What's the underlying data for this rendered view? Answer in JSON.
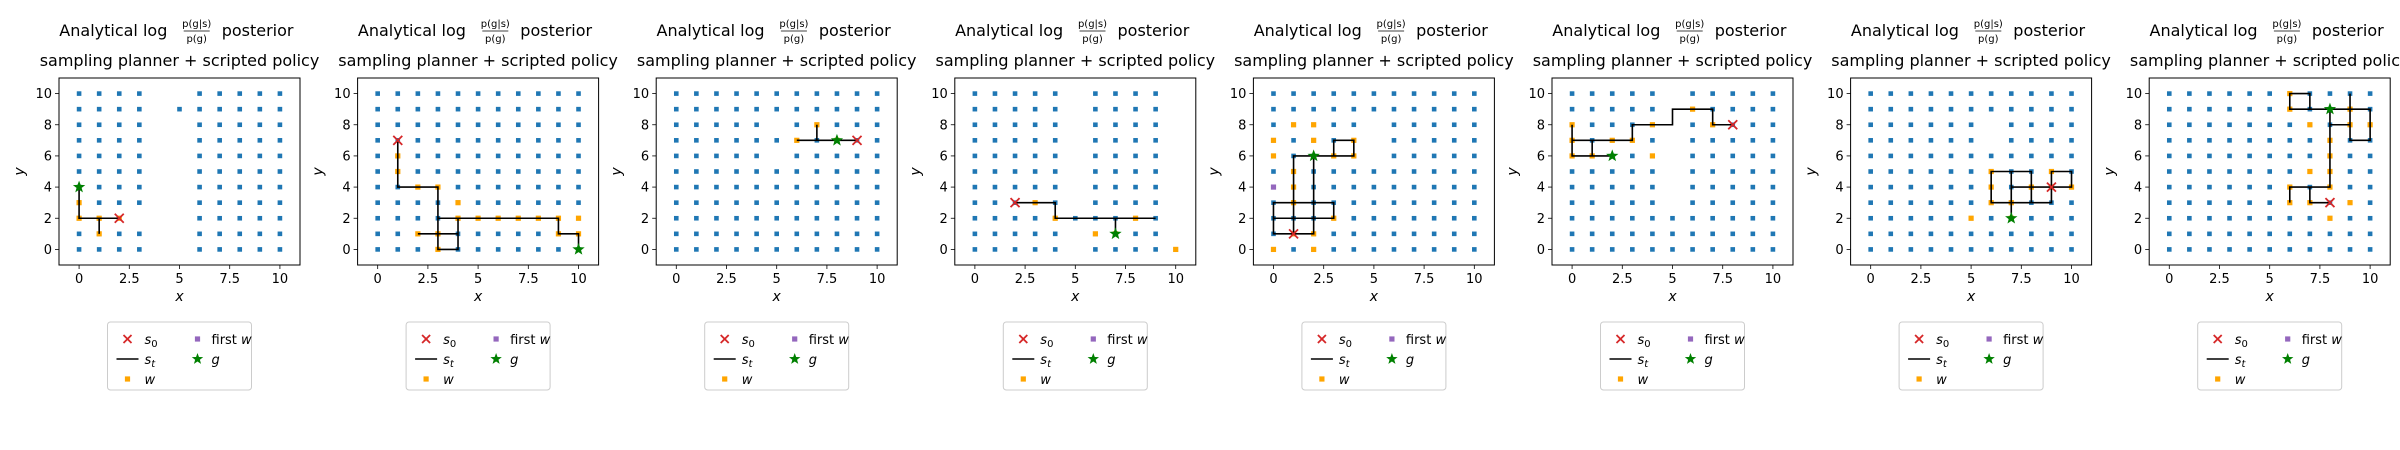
{
  "panel_titles": {
    "line1_prefix": "Analytical",
    "line1_log": "log",
    "frac_num": "p(g|s)",
    "frac_den": "p(g)",
    "line1_suffix": "posterior",
    "line2": "sampling planner + scripted policy"
  },
  "legend": {
    "s0": "s0",
    "st": "st",
    "w": "w",
    "first_w": "first w",
    "g": "g"
  },
  "colors": {
    "grid_states": "#1f77b4",
    "waypoints": "#ffa500",
    "trajectory": "#000000",
    "start_marker": "#d62728",
    "goal_marker": "#008000",
    "first_waypoint": "#9467bd"
  },
  "chart_data": [
    {
      "type": "scatter",
      "xlabel": "x",
      "ylabel": "y",
      "xlim": [
        -1,
        11
      ],
      "ylim": [
        -1,
        11
      ],
      "xticks": [
        0.0,
        2.5,
        5.0,
        7.5,
        10.0
      ],
      "yticks": [
        0,
        2,
        4,
        6,
        8,
        10
      ],
      "missing_states": [
        [
          4,
          0
        ],
        [
          4,
          1
        ],
        [
          4,
          3
        ],
        [
          4,
          4
        ],
        [
          4,
          5
        ],
        [
          4,
          6
        ],
        [
          4,
          7
        ],
        [
          4,
          8
        ],
        [
          4,
          9
        ],
        [
          4,
          10
        ],
        [
          5,
          0
        ],
        [
          5,
          1
        ],
        [
          5,
          3
        ],
        [
          5,
          4
        ],
        [
          5,
          5
        ],
        [
          5,
          6
        ],
        [
          5,
          7
        ],
        [
          5,
          8
        ],
        [
          5,
          10
        ],
        [
          3,
          2
        ],
        [
          4,
          2
        ],
        [
          5,
          2
        ]
      ],
      "waypoints": [
        [
          0,
          3
        ],
        [
          0,
          2
        ],
        [
          1,
          1
        ],
        [
          1,
          2
        ],
        [
          2,
          2
        ]
      ],
      "trajectory": [
        [
          0,
          4
        ],
        [
          0,
          2
        ],
        [
          1,
          2
        ],
        [
          1,
          1
        ],
        [
          1,
          2
        ],
        [
          2,
          2
        ]
      ],
      "start": [
        2,
        2
      ],
      "goal": [
        0,
        4
      ],
      "first_waypoint": null
    },
    {
      "type": "scatter",
      "xlabel": "x",
      "ylabel": "y",
      "xlim": [
        -1,
        11
      ],
      "ylim": [
        -1,
        11
      ],
      "xticks": [
        0.0,
        2.5,
        5.0,
        7.5,
        10.0
      ],
      "yticks": [
        0,
        2,
        4,
        6,
        8,
        10
      ],
      "missing_states": [],
      "waypoints": [
        [
          1,
          6
        ],
        [
          1,
          5
        ],
        [
          2,
          4
        ],
        [
          3,
          4
        ],
        [
          4,
          3
        ],
        [
          4,
          2
        ],
        [
          3,
          1
        ],
        [
          3,
          0
        ],
        [
          2,
          1
        ],
        [
          5,
          2
        ],
        [
          6,
          2
        ],
        [
          7,
          2
        ],
        [
          8,
          2
        ],
        [
          9,
          2
        ],
        [
          10,
          2
        ],
        [
          10,
          1
        ],
        [
          9,
          1
        ]
      ],
      "trajectory": [
        [
          1,
          7
        ],
        [
          1,
          4
        ],
        [
          3,
          4
        ],
        [
          3,
          2
        ],
        [
          4,
          2
        ],
        [
          4,
          1
        ],
        [
          2,
          1
        ],
        [
          4,
          1
        ],
        [
          4,
          0
        ],
        [
          3,
          0
        ],
        [
          3,
          2
        ],
        [
          9,
          2
        ],
        [
          9,
          1
        ],
        [
          10,
          1
        ],
        [
          10,
          0
        ]
      ],
      "start": [
        1,
        7
      ],
      "goal": [
        10,
        0
      ],
      "first_waypoint": null
    },
    {
      "type": "scatter",
      "xlabel": "x",
      "ylabel": "y",
      "xlim": [
        -1,
        11
      ],
      "ylim": [
        -1,
        11
      ],
      "xticks": [
        0.0,
        2.5,
        5.0,
        7.5,
        10.0
      ],
      "yticks": [
        0,
        2,
        4,
        6,
        8,
        10
      ],
      "missing_states": [
        [
          5,
          6
        ],
        [
          5,
          8
        ]
      ],
      "waypoints": [
        [
          6,
          7
        ],
        [
          7,
          8
        ],
        [
          8,
          7
        ]
      ],
      "trajectory": [
        [
          9,
          7
        ],
        [
          7,
          7
        ],
        [
          7,
          8
        ],
        [
          7,
          7
        ],
        [
          6,
          7
        ]
      ],
      "start": [
        9,
        7
      ],
      "goal": [
        8,
        7
      ],
      "first_waypoint": null
    },
    {
      "type": "scatter",
      "xlabel": "x",
      "ylabel": "y",
      "xlim": [
        -1,
        11
      ],
      "ylim": [
        -1,
        11
      ],
      "xticks": [
        0.0,
        2.5,
        5.0,
        7.5,
        10.0
      ],
      "yticks": [
        0,
        2,
        4,
        6,
        8,
        10
      ],
      "missing_states": [
        [
          5,
          0
        ],
        [
          5,
          1
        ],
        [
          5,
          3
        ],
        [
          5,
          4
        ],
        [
          5,
          5
        ],
        [
          5,
          6
        ],
        [
          5,
          7
        ],
        [
          5,
          8
        ],
        [
          5,
          9
        ],
        [
          5,
          10
        ],
        [
          10,
          1
        ],
        [
          10,
          2
        ],
        [
          10,
          3
        ],
        [
          10,
          4
        ],
        [
          10,
          5
        ],
        [
          10,
          6
        ],
        [
          10,
          7
        ],
        [
          10,
          8
        ],
        [
          10,
          9
        ],
        [
          10,
          10
        ]
      ],
      "waypoints": [
        [
          3,
          3
        ],
        [
          4,
          2
        ],
        [
          6,
          1
        ],
        [
          7,
          1
        ],
        [
          8,
          2
        ],
        [
          10,
          0
        ]
      ],
      "trajectory": [
        [
          2,
          3
        ],
        [
          4,
          3
        ],
        [
          4,
          2
        ],
        [
          9,
          2
        ],
        [
          7,
          2
        ],
        [
          7,
          1
        ]
      ],
      "start": [
        2,
        3
      ],
      "goal": [
        7,
        1
      ],
      "first_waypoint": null
    },
    {
      "type": "scatter",
      "xlabel": "x",
      "ylabel": "y",
      "xlim": [
        -1,
        11
      ],
      "ylim": [
        -1,
        11
      ],
      "xticks": [
        0.0,
        2.5,
        5.0,
        7.5,
        10.0
      ],
      "yticks": [
        0,
        2,
        4,
        6,
        8,
        10
      ],
      "missing_states": [
        [
          5,
          6
        ],
        [
          5,
          7
        ],
        [
          5,
          8
        ]
      ],
      "waypoints": [
        [
          0,
          7
        ],
        [
          1,
          8
        ],
        [
          2,
          8
        ],
        [
          0,
          6
        ],
        [
          1,
          5
        ],
        [
          1,
          4
        ],
        [
          1,
          3
        ],
        [
          2,
          7
        ],
        [
          3,
          6
        ],
        [
          4,
          6
        ],
        [
          4,
          7
        ],
        [
          3,
          2
        ],
        [
          2,
          1
        ],
        [
          2,
          0
        ],
        [
          1,
          1
        ],
        [
          0,
          0
        ]
      ],
      "trajectory": [
        [
          1,
          1
        ],
        [
          0,
          1
        ],
        [
          0,
          3
        ],
        [
          1,
          3
        ],
        [
          1,
          6
        ],
        [
          3,
          6
        ],
        [
          3,
          7
        ],
        [
          4,
          7
        ],
        [
          4,
          6
        ],
        [
          2,
          6
        ],
        [
          2,
          3
        ],
        [
          3,
          3
        ],
        [
          3,
          2
        ],
        [
          0,
          2
        ],
        [
          0,
          1
        ],
        [
          2,
          1
        ],
        [
          2,
          3
        ],
        [
          1,
          3
        ],
        [
          1,
          1
        ]
      ],
      "start": [
        1,
        1
      ],
      "goal": [
        2,
        6
      ],
      "first_waypoint": [
        0,
        4
      ]
    },
    {
      "type": "scatter",
      "xlabel": "x",
      "ylabel": "y",
      "xlim": [
        -1,
        11
      ],
      "ylim": [
        -1,
        11
      ],
      "xticks": [
        0.0,
        2.5,
        5.0,
        7.5,
        10.0
      ],
      "yticks": [
        0,
        2,
        4,
        6,
        8,
        10
      ],
      "missing_states": [
        [
          5,
          3
        ],
        [
          5,
          4
        ],
        [
          5,
          5
        ],
        [
          5,
          6
        ],
        [
          5,
          7
        ],
        [
          5,
          8
        ],
        [
          5,
          9
        ],
        [
          5,
          10
        ]
      ],
      "waypoints": [
        [
          0,
          8
        ],
        [
          0,
          7
        ],
        [
          0,
          6
        ],
        [
          1,
          6
        ],
        [
          2,
          7
        ],
        [
          3,
          7
        ],
        [
          4,
          6
        ],
        [
          4,
          8
        ],
        [
          6,
          9
        ],
        [
          7,
          8
        ]
      ],
      "trajectory": [
        [
          8,
          8
        ],
        [
          7,
          8
        ],
        [
          7,
          9
        ],
        [
          5,
          9
        ],
        [
          5,
          8
        ],
        [
          3,
          8
        ],
        [
          3,
          7
        ],
        [
          1,
          7
        ],
        [
          1,
          6
        ],
        [
          0,
          6
        ],
        [
          0,
          8
        ],
        [
          0,
          7
        ],
        [
          1,
          7
        ],
        [
          1,
          6
        ],
        [
          2,
          6
        ]
      ],
      "start": [
        8,
        8
      ],
      "goal": [
        2,
        6
      ],
      "first_waypoint": null
    },
    {
      "type": "scatter",
      "xlabel": "x",
      "ylabel": "y",
      "xlim": [
        -1,
        11
      ],
      "ylim": [
        -1,
        11
      ],
      "xticks": [
        0.0,
        2.5,
        5.0,
        7.5,
        10.0
      ],
      "yticks": [
        0,
        2,
        4,
        6,
        8,
        10
      ],
      "missing_states": [
        [
          6,
          7
        ],
        [
          6,
          8
        ]
      ],
      "waypoints": [
        [
          6,
          5
        ],
        [
          6,
          4
        ],
        [
          6,
          3
        ],
        [
          7,
          3
        ],
        [
          8,
          4
        ],
        [
          9,
          5
        ],
        [
          9,
          4
        ],
        [
          10,
          4
        ],
        [
          5,
          2
        ],
        [
          7,
          2
        ]
      ],
      "trajectory": [
        [
          9,
          4
        ],
        [
          8,
          4
        ],
        [
          8,
          3
        ],
        [
          7,
          3
        ],
        [
          7,
          5
        ],
        [
          6,
          5
        ],
        [
          6,
          3
        ],
        [
          7,
          3
        ],
        [
          7,
          2
        ],
        [
          7,
          4
        ],
        [
          8,
          4
        ],
        [
          8,
          5
        ],
        [
          7,
          5
        ],
        [
          8,
          5
        ],
        [
          8,
          3
        ],
        [
          9,
          3
        ],
        [
          9,
          5
        ],
        [
          10,
          5
        ],
        [
          10,
          4
        ],
        [
          9,
          4
        ]
      ],
      "start": [
        9,
        4
      ],
      "goal": [
        7,
        2
      ],
      "first_waypoint": null
    },
    {
      "type": "scatter",
      "xlabel": "x",
      "ylabel": "y",
      "xlim": [
        -1,
        11
      ],
      "ylim": [
        -1,
        11
      ],
      "xticks": [
        0.0,
        2.5,
        5.0,
        7.5,
        10.0
      ],
      "yticks": [
        0,
        2,
        4,
        6,
        8,
        10
      ],
      "missing_states": [],
      "waypoints": [
        [
          6,
          10
        ],
        [
          6,
          9
        ],
        [
          7,
          8
        ],
        [
          9,
          8
        ],
        [
          10,
          8
        ],
        [
          9,
          9
        ],
        [
          8,
          7
        ],
        [
          8,
          6
        ],
        [
          8,
          5
        ],
        [
          8,
          4
        ],
        [
          7,
          5
        ],
        [
          6,
          4
        ],
        [
          6,
          3
        ],
        [
          7,
          3
        ],
        [
          8,
          2
        ],
        [
          9,
          3
        ]
      ],
      "trajectory": [
        [
          8,
          3
        ],
        [
          7,
          3
        ],
        [
          7,
          4
        ],
        [
          6,
          4
        ],
        [
          6,
          3
        ],
        [
          6,
          4
        ],
        [
          8,
          4
        ],
        [
          8,
          9
        ],
        [
          7,
          9
        ],
        [
          7,
          10
        ],
        [
          6,
          10
        ],
        [
          6,
          9
        ],
        [
          8,
          9
        ],
        [
          10,
          9
        ],
        [
          10,
          7
        ],
        [
          9,
          7
        ],
        [
          9,
          10
        ],
        [
          9,
          8
        ],
        [
          8,
          8
        ],
        [
          8,
          7
        ]
      ],
      "start": [
        8,
        3
      ],
      "goal": [
        8,
        9
      ],
      "first_waypoint": null
    }
  ]
}
